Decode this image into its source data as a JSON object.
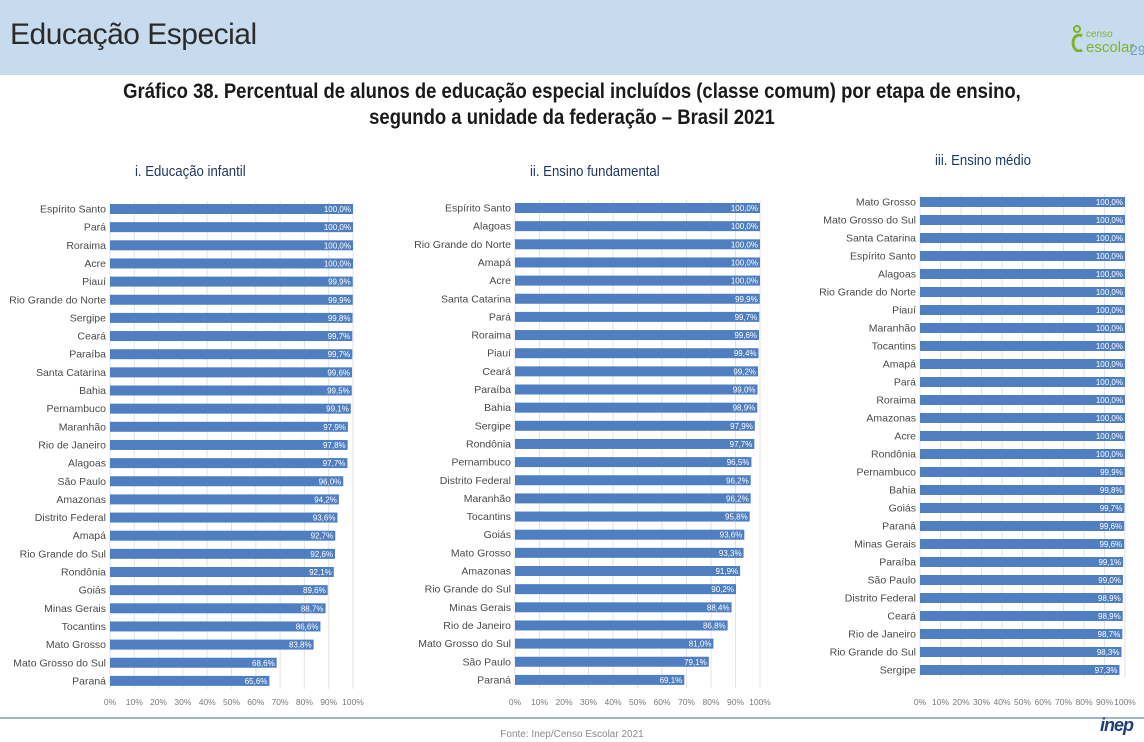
{
  "header": {
    "title": "Educação Especial",
    "logo_top": "censo",
    "logo_bottom": "escolar",
    "page_number": "29"
  },
  "title_line1": "Gráfico 38. Percentual de alunos de educação especial incluídos (classe comum) por etapa de ensino,",
  "title_line2": "segundo a unidade da federação – Brasil 2021",
  "source": "Fonte: Inep/Censo Escolar 2021",
  "footer_logo": "inep",
  "colors": {
    "bar": "#4f7fc1",
    "header": "#c6dcee",
    "grid": "#e3e3e3"
  },
  "chart_data": [
    {
      "type": "bar",
      "orientation": "horizontal",
      "title": "i. Educação infantil",
      "categories": [
        "Espírito Santo",
        "Pará",
        "Roraima",
        "Acre",
        "Piauí",
        "Rio Grande do Norte",
        "Sergipe",
        "Ceará",
        "Paraíba",
        "Santa Catarina",
        "Bahia",
        "Pernambuco",
        "Maranhão",
        "Rio de Janeiro",
        "Alagoas",
        "São Paulo",
        "Amazonas",
        "Distrito Federal",
        "Amapá",
        "Rio Grande do Sul",
        "Rondônia",
        "Goiás",
        "Minas Gerais",
        "Tocantins",
        "Mato Grosso",
        "Mato Grosso do Sul",
        "Paraná"
      ],
      "values": [
        100.0,
        100.0,
        100.0,
        100.0,
        99.9,
        99.9,
        99.8,
        99.7,
        99.7,
        99.6,
        99.5,
        99.1,
        97.9,
        97.8,
        97.7,
        96.0,
        94.2,
        93.6,
        92.7,
        92.6,
        92.1,
        89.6,
        88.7,
        86.6,
        83.8,
        68.6,
        65.6
      ],
      "labels": [
        "100,0%",
        "100,0%",
        "100,0%",
        "100,0%",
        "99,9%",
        "99,9%",
        "99,8%",
        "99,7%",
        "99,7%",
        "99,6%",
        "99,5%",
        "99,1%",
        "97,9%",
        "97,8%",
        "97,7%",
        "96,0%",
        "94,2%",
        "93,6%",
        "92,7%",
        "92,6%",
        "92,1%",
        "89,6%",
        "88,7%",
        "86,6%",
        "83,8%",
        "68,6%",
        "65,6%"
      ],
      "ticks": [
        "0%",
        "10%",
        "20%",
        "30%",
        "40%",
        "50%",
        "60%",
        "70%",
        "80%",
        "90%",
        "100%"
      ],
      "xlim": [
        0,
        100
      ],
      "grid": true
    },
    {
      "type": "bar",
      "orientation": "horizontal",
      "title": "ii. Ensino fundamental",
      "categories": [
        "Espírito Santo",
        "Alagoas",
        "Rio Grande do Norte",
        "Amapá",
        "Acre",
        "Santa Catarina",
        "Pará",
        "Roraima",
        "Piauí",
        "Ceará",
        "Paraíba",
        "Bahia",
        "Sergipe",
        "Rondônia",
        "Pernambuco",
        "Distrito Federal",
        "Maranhão",
        "Tocantins",
        "Goiás",
        "Mato Grosso",
        "Amazonas",
        "Rio Grande do Sul",
        "Minas Gerais",
        "Rio de Janeiro",
        "Mato Grosso do Sul",
        "São Paulo",
        "Paraná"
      ],
      "values": [
        100.0,
        100.0,
        100.0,
        100.0,
        100.0,
        99.9,
        99.7,
        99.6,
        99.4,
        99.2,
        99.0,
        98.9,
        97.9,
        97.7,
        96.5,
        96.2,
        96.2,
        95.8,
        93.6,
        93.3,
        91.9,
        90.2,
        88.4,
        86.8,
        81.0,
        79.1,
        69.1
      ],
      "labels": [
        "100,0%",
        "100,0%",
        "100,0%",
        "100,0%",
        "100,0%",
        "99,9%",
        "99,7%",
        "99,6%",
        "99,4%",
        "99,2%",
        "99,0%",
        "98,9%",
        "97,9%",
        "97,7%",
        "96,5%",
        "96,2%",
        "96,2%",
        "95,8%",
        "93,6%",
        "93,3%",
        "91,9%",
        "90,2%",
        "88,4%",
        "86,8%",
        "81,0%",
        "79,1%",
        "69,1%"
      ],
      "ticks": [
        "0%",
        "10%",
        "20%",
        "30%",
        "40%",
        "50%",
        "60%",
        "70%",
        "80%",
        "90%",
        "100%"
      ],
      "xlim": [
        0,
        100
      ],
      "grid": true
    },
    {
      "type": "bar",
      "orientation": "horizontal",
      "title": "iii. Ensino médio",
      "categories": [
        "Mato Grosso",
        "Mato Grosso do Sul",
        "Santa Catarina",
        "Espírito Santo",
        "Alagoas",
        "Rio Grande do Norte",
        "Piauí",
        "Maranhão",
        "Tocantins",
        "Amapá",
        "Pará",
        "Roraima",
        "Amazonas",
        "Acre",
        "Rondônia",
        "Pernambuco",
        "Bahia",
        "Goiás",
        "Paraná",
        "Minas Gerais",
        "Paraíba",
        "São Paulo",
        "Distrito Federal",
        "Ceará",
        "Rio de Janeiro",
        "Rio Grande do Sul",
        "Sergipe"
      ],
      "values": [
        100.0,
        100.0,
        100.0,
        100.0,
        100.0,
        100.0,
        100.0,
        100.0,
        100.0,
        100.0,
        100.0,
        100.0,
        100.0,
        100.0,
        100.0,
        99.9,
        99.8,
        99.7,
        99.6,
        99.6,
        99.1,
        99.0,
        98.9,
        98.9,
        98.7,
        98.3,
        97.3
      ],
      "labels": [
        "100,0%",
        "100,0%",
        "100,0%",
        "100,0%",
        "100,0%",
        "100,0%",
        "100,0%",
        "100,0%",
        "100,0%",
        "100,0%",
        "100,0%",
        "100,0%",
        "100,0%",
        "100,0%",
        "100,0%",
        "99,9%",
        "99,8%",
        "99,7%",
        "99,6%",
        "99,6%",
        "99,1%",
        "99,0%",
        "98,9%",
        "98,9%",
        "98,7%",
        "98,3%",
        "97,3%"
      ],
      "ticks": [
        "0%",
        "10%",
        "20%",
        "30%",
        "40%",
        "50%",
        "60%",
        "70%",
        "80%",
        "90%",
        "100%"
      ],
      "xlim": [
        0,
        100
      ],
      "grid": true
    }
  ]
}
